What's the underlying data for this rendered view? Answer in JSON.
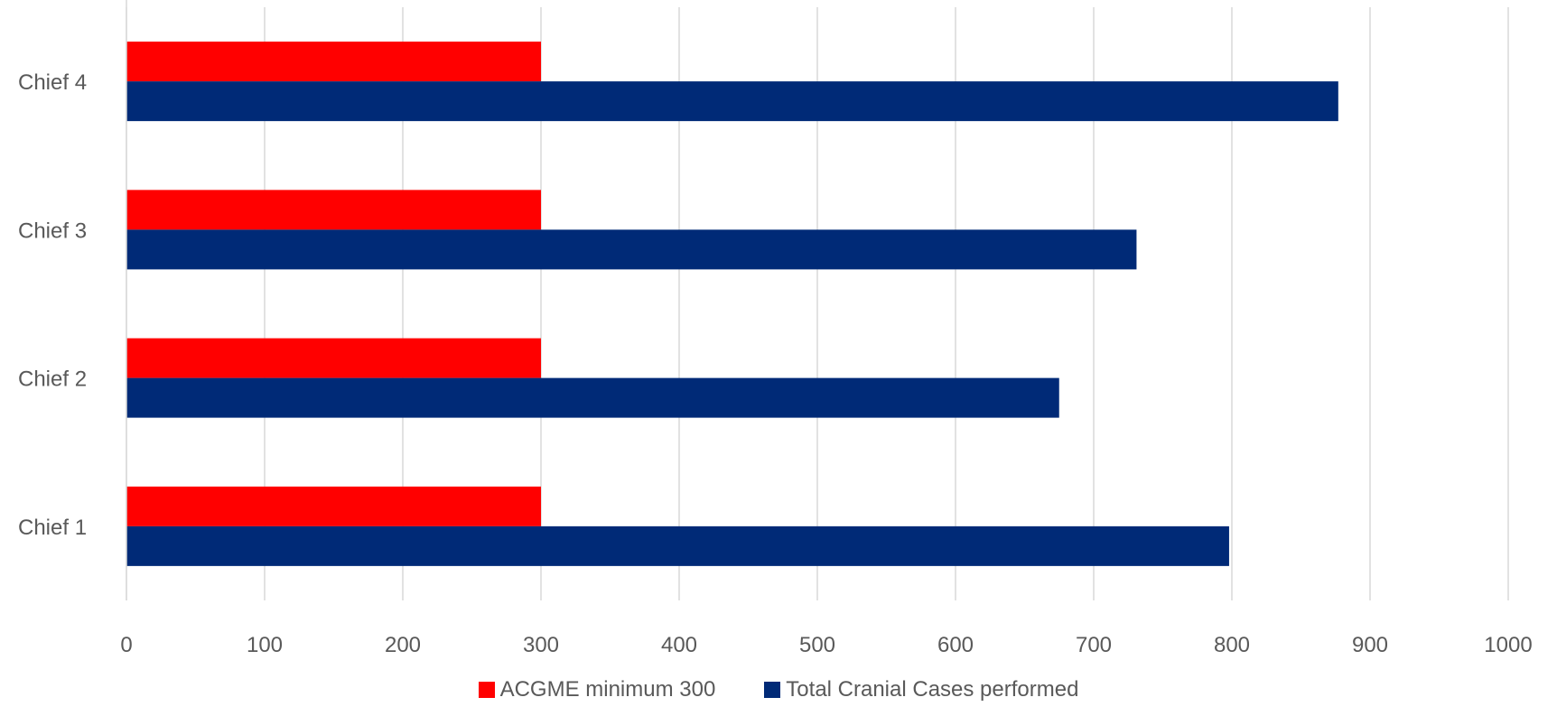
{
  "chart_data": {
    "type": "bar",
    "orientation": "horizontal",
    "categories": [
      "Chief 1",
      "Chief 2",
      "Chief 3",
      "Chief 4"
    ],
    "series": [
      {
        "name": "ACGME minimum 300",
        "color": "#ff0000",
        "values": [
          300,
          300,
          300,
          300
        ]
      },
      {
        "name": "Total Cranial Cases performed",
        "color": "#002a77",
        "values": [
          798,
          675,
          731,
          877
        ]
      }
    ],
    "title": "",
    "xlabel": "",
    "ylabel": "",
    "xlim": [
      0,
      1000
    ],
    "xticks": [
      0,
      100,
      200,
      300,
      400,
      500,
      600,
      700,
      800,
      900,
      1000
    ],
    "grid": "vertical",
    "legend_position": "bottom"
  }
}
